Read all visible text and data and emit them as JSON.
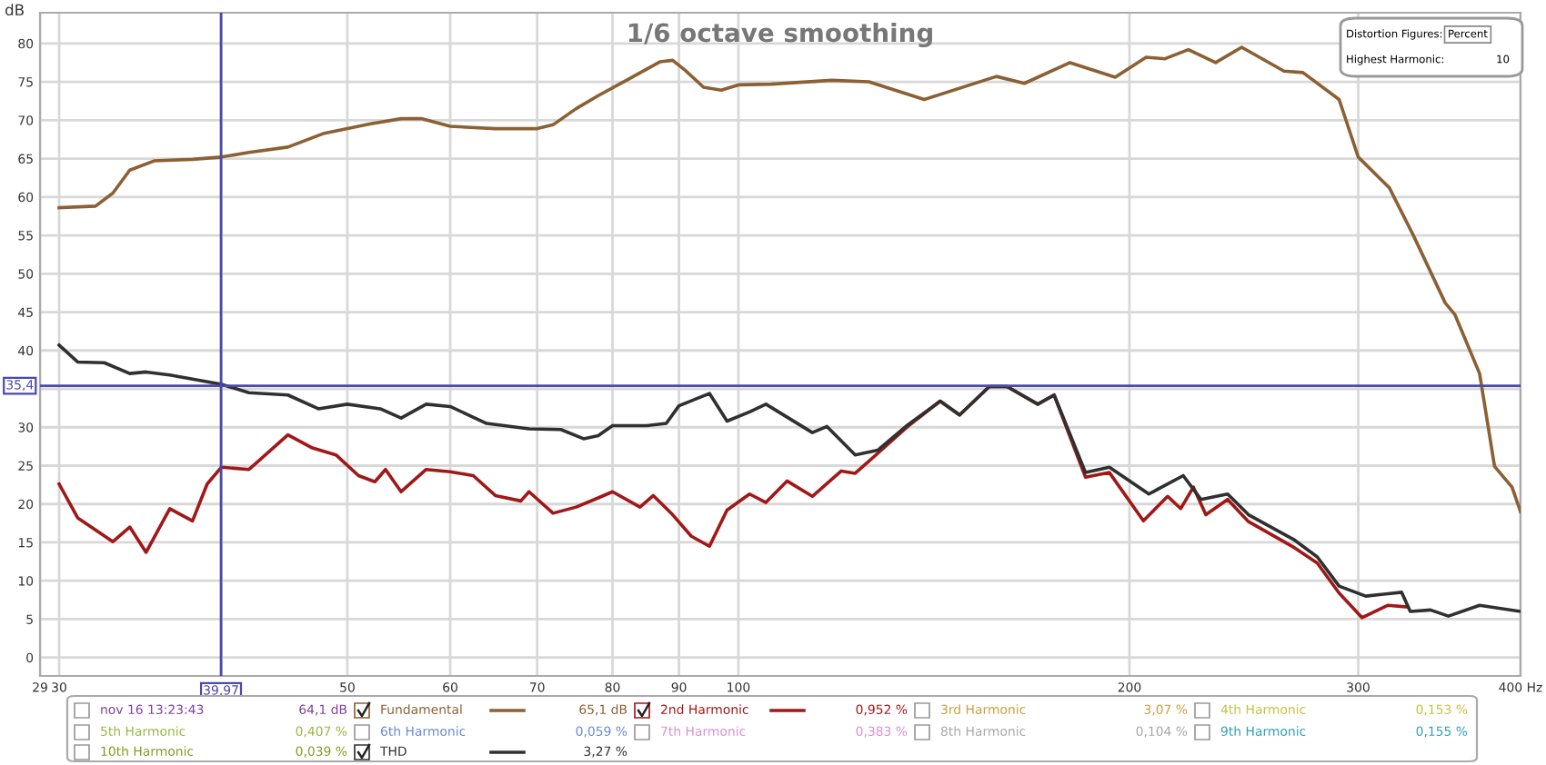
{
  "chart_data": {
    "type": "line",
    "title": "1/6 octave smoothing",
    "ylabel": "dB",
    "log": "x",
    "grid": true,
    "legend": "bottom",
    "marker": "none",
    "line_style": "solid",
    "xlim": [
      29,
      400
    ],
    "xticks": [
      29,
      30,
      {
        "value": 40,
        "label": null
      },
      50,
      60,
      70,
      80,
      90,
      100,
      200,
      300,
      {
        "value": 400,
        "label": "400 Hz"
      }
    ],
    "ylim": [
      -2.4,
      84
    ],
    "yticks": [
      0,
      5,
      10,
      15,
      20,
      25,
      30,
      {
        "value": 35,
        "label": null
      },
      40,
      45,
      50,
      55,
      60,
      65,
      70,
      75,
      80
    ],
    "ref_lines": [
      {
        "axis": "x",
        "value": 39.97,
        "label": "39,97",
        "color": "#4a4aa8"
      },
      {
        "axis": "y",
        "value": 35.4,
        "label": "35,4",
        "color": "#4a4aa8"
      }
    ],
    "series": [
      {
        "name": "Fundamental",
        "color": "#8b6034",
        "x": [
          30,
          32,
          33,
          34,
          35.5,
          38,
          40,
          42,
          45,
          48,
          52,
          55,
          57,
          60,
          65,
          70,
          72,
          75,
          78,
          82,
          87,
          89,
          91,
          94,
          97,
          100,
          106,
          118,
          126,
          139,
          158,
          166,
          180,
          195,
          206,
          213,
          222,
          233,
          244,
          263,
          272,
          290,
          300,
          317,
          331,
          350,
          356,
          372,
          382,
          394,
          400
        ],
        "values": [
          58.6,
          58.8,
          60.5,
          63.5,
          64.7,
          64.9,
          65.2,
          65.8,
          66.5,
          68.3,
          69.5,
          70.2,
          70.2,
          69.2,
          68.9,
          68.9,
          69.4,
          71.5,
          73.2,
          75.2,
          77.6,
          77.8,
          76.5,
          74.3,
          73.9,
          74.6,
          74.7,
          75.2,
          75.0,
          72.7,
          75.7,
          74.8,
          77.5,
          75.6,
          78.2,
          78.0,
          79.2,
          77.5,
          79.5,
          76.4,
          76.2,
          72.7,
          65.2,
          61.2,
          54.9,
          46.2,
          44.7,
          37,
          24.9,
          22.2,
          19.0
        ]
      },
      {
        "name": "2nd Harmonic",
        "color": "#a01818",
        "x": [
          30,
          31,
          33,
          34,
          35,
          36.5,
          38,
          39,
          40,
          42,
          45,
          47,
          49,
          51,
          52.5,
          53.5,
          55,
          57.5,
          60,
          62.5,
          65,
          68,
          69,
          72,
          75,
          78,
          80,
          84,
          86,
          89,
          92,
          95,
          98,
          102,
          105,
          109,
          114,
          120,
          123,
          128,
          135,
          143,
          148,
          156,
          161,
          170,
          175,
          185,
          193,
          205,
          214,
          219,
          224,
          229,
          238,
          247,
          268,
          279,
          290,
          302,
          316,
          327
        ],
        "values": [
          22.6,
          18.2,
          15.1,
          17.0,
          13.7,
          19.4,
          17.8,
          22.6,
          24.8,
          24.5,
          29.0,
          27.3,
          26.4,
          23.7,
          22.9,
          24.5,
          21.6,
          24.5,
          24.2,
          23.7,
          21.1,
          20.4,
          21.6,
          18.8,
          19.6,
          20.8,
          21.6,
          19.6,
          21.1,
          18.6,
          15.8,
          14.5,
          19.2,
          21.3,
          20.2,
          23.0,
          21.0,
          24.3,
          24.0,
          26.6,
          30.1,
          33.4,
          31.6,
          35.3,
          35.3,
          33.0,
          34.2,
          23.5,
          24.1,
          17.8,
          21.0,
          19.4,
          22.2,
          18.6,
          20.6,
          17.7,
          14.3,
          12.3,
          8.4,
          5.2,
          6.8,
          6.6
        ]
      },
      {
        "name": "THD",
        "color": "#303030",
        "x": [
          30,
          31,
          32.5,
          34,
          35,
          36.5,
          40,
          42,
          45,
          47.5,
          50,
          53,
          55,
          57.5,
          60,
          64,
          69,
          73,
          76,
          78,
          80,
          85,
          88,
          90,
          95,
          98,
          102,
          105,
          114,
          117,
          123,
          128,
          135,
          143,
          148,
          156,
          161,
          170,
          175,
          185,
          193,
          207,
          220,
          227,
          238,
          247,
          268,
          279,
          290,
          304,
          324,
          329,
          341,
          352,
          372,
          400
        ],
        "values": [
          40.7,
          38.5,
          38.4,
          37.0,
          37.2,
          36.8,
          35.6,
          34.5,
          34.2,
          32.4,
          33.0,
          32.4,
          31.2,
          33.0,
          32.7,
          30.5,
          29.8,
          29.7,
          28.5,
          28.9,
          30.2,
          30.2,
          30.5,
          32.8,
          34.4,
          30.8,
          32.0,
          33.0,
          29.3,
          30.1,
          26.4,
          27.0,
          30.3,
          33.4,
          31.6,
          35.3,
          35.3,
          33.0,
          34.2,
          24.1,
          24.8,
          21.3,
          23.7,
          20.6,
          21.3,
          18.6,
          15.3,
          13.1,
          9.3,
          8.0,
          8.5,
          6.0,
          6.2,
          5.4,
          6.8,
          6.0
        ]
      }
    ],
    "annotations": [
      "nov 16 13:23:43",
      "64,1 dB",
      "65,1 dB",
      "0,952 %",
      "3rd Harmonic",
      "3,07 %",
      "4th Harmonic",
      "0,153 %",
      "5th Harmonic",
      "0,407 %",
      "6th Harmonic",
      "0,059 %",
      "7th Harmonic",
      "0,383 %",
      "8th Harmonic",
      "0,104 %",
      "9th Harmonic",
      "0,155 %",
      "10th Harmonic",
      "0,039 %",
      "3,27 %",
      "Distortion Figures:",
      "Percent",
      "Highest Harmonic:",
      "10"
    ]
  }
}
